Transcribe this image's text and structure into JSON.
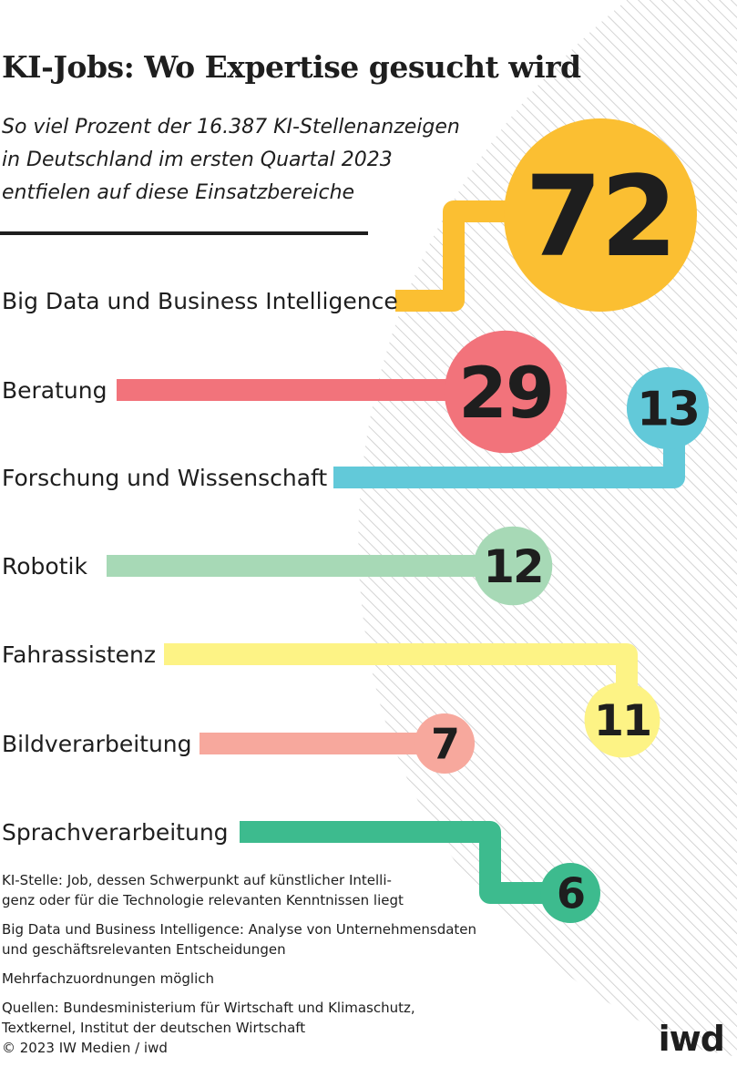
{
  "title": "KI-Jobs: Wo Expertise gesucht wird",
  "subtitle_lines": [
    "So viel Prozent der 16.387 KI-Stellenanzeigen",
    "in Deutschland im ersten Quartal 2023",
    "entfielen auf diese Einsatzbereiche"
  ],
  "chart_data": {
    "type": "bar",
    "categories": [
      "Big Data und Business Intelligence",
      "Beratung",
      "Forschung und Wissenschaft",
      "Robotik",
      "Fahrassistenz",
      "Bildverarbeitung",
      "Sprachverarbeitung"
    ],
    "values": [
      72,
      29,
      13,
      12,
      11,
      7,
      6
    ],
    "value_labels": [
      "72",
      "29",
      "13",
      "12",
      "11",
      "7",
      "6"
    ],
    "colors": [
      "#fbbf32",
      "#f2737b",
      "#62c9d9",
      "#a7d9b6",
      "#fdf385",
      "#f7a89d",
      "#3dbb8e"
    ],
    "unit": "Prozent"
  },
  "footnotes": {
    "definition_ki": [
      "KI-Stelle: Job, dessen Schwerpunkt auf künstlicher Intelli-",
      "genz oder für die Technologie relevanten Kenntnissen liegt"
    ],
    "definition_bigdata": [
      "Big Data und Business Intelligence: Analyse von Unternehmensdaten",
      "und geschäftsrelevanten Entscheidungen"
    ],
    "note": "Mehrfachzuordnungen möglich",
    "sources": [
      "Quellen: Bundesministerium für Wirtschaft und Klimaschutz,",
      "Textkernel, Institut der deutschen Wirtschaft"
    ],
    "copyright": "© 2023 IW Medien / iwd"
  },
  "logo": "iwd"
}
